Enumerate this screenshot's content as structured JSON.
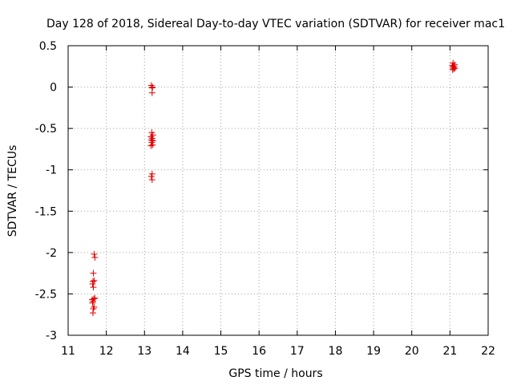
{
  "chart_data": {
    "type": "scatter",
    "title": "Day 128 of 2018, Sidereal Day-to-day VTEC variation (SDTVAR) for receiver mac1",
    "xlabel": "GPS time / hours",
    "ylabel": "SDTVAR / TECUs",
    "xlim": [
      11,
      22
    ],
    "ylim": [
      -3,
      0.5
    ],
    "xticks": [
      "11",
      "12",
      "13",
      "14",
      "15",
      "16",
      "17",
      "18",
      "19",
      "20",
      "21",
      "22"
    ],
    "yticks": [
      "0.5",
      "0",
      "-0.5",
      "-1",
      "-1.5",
      "-2",
      "-2.5",
      "-3"
    ],
    "grid": true,
    "marker": "+",
    "series": [
      {
        "name": "mac1",
        "color": "#e00000",
        "points": [
          [
            11.68,
            -2.02
          ],
          [
            11.7,
            -2.06
          ],
          [
            11.66,
            -2.25
          ],
          [
            11.65,
            -2.35
          ],
          [
            11.68,
            -2.34
          ],
          [
            11.64,
            -2.38
          ],
          [
            11.66,
            -2.42
          ],
          [
            11.63,
            -2.57
          ],
          [
            11.67,
            -2.56
          ],
          [
            11.65,
            -2.59
          ],
          [
            11.7,
            -2.55
          ],
          [
            11.64,
            -2.61
          ],
          [
            11.68,
            -2.66
          ],
          [
            11.66,
            -2.68
          ],
          [
            11.65,
            -2.73
          ],
          [
            13.18,
            0.02
          ],
          [
            13.2,
            -0.01
          ],
          [
            13.21,
            0.0
          ],
          [
            13.2,
            -0.07
          ],
          [
            13.19,
            -0.55
          ],
          [
            13.22,
            -0.58
          ],
          [
            13.17,
            -0.6
          ],
          [
            13.2,
            -0.62
          ],
          [
            13.18,
            -0.64
          ],
          [
            13.22,
            -0.65
          ],
          [
            13.19,
            -0.67
          ],
          [
            13.21,
            -0.7
          ],
          [
            13.17,
            -0.71
          ],
          [
            13.2,
            -1.05
          ],
          [
            13.18,
            -1.08
          ],
          [
            13.2,
            -1.12
          ],
          [
            21.08,
            0.29
          ],
          [
            21.12,
            0.27
          ],
          [
            21.06,
            0.26
          ],
          [
            21.1,
            0.25
          ],
          [
            21.08,
            0.24
          ],
          [
            21.13,
            0.23
          ],
          [
            21.1,
            0.22
          ],
          [
            21.07,
            0.21
          ]
        ]
      }
    ]
  }
}
